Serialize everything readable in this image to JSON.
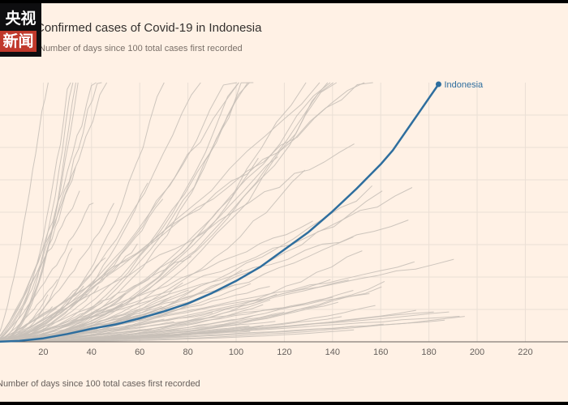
{
  "logo": {
    "line1": "央视",
    "line2": "新闻"
  },
  "chart_data": {
    "type": "line",
    "title": "Confirmed cases of Covid-19 in Indonesia",
    "subtitle": "Number of days since 100 total cases first recorded",
    "xlabel": "Number of days since 100 total cases first recorded",
    "ylabel": "",
    "xlim": [
      0,
      235
    ],
    "x_ticks": [
      20,
      40,
      60,
      80,
      100,
      120,
      140,
      160,
      180,
      200,
      220
    ],
    "highlight": {
      "name": "Indonesia",
      "color": "#2E6E9E",
      "x": [
        0,
        10,
        20,
        30,
        40,
        50,
        60,
        70,
        80,
        90,
        100,
        110,
        120,
        130,
        140,
        150,
        160,
        165,
        170,
        175,
        180,
        184
      ],
      "y": [
        0,
        0.5,
        2,
        4.5,
        7.5,
        10,
        13.5,
        17.5,
        22,
        28,
        35,
        43,
        53,
        63,
        75,
        88,
        102,
        110,
        120,
        130,
        140,
        148
      ]
    },
    "background_series_color": "#C8C0B8",
    "background_series_count": 110
  }
}
